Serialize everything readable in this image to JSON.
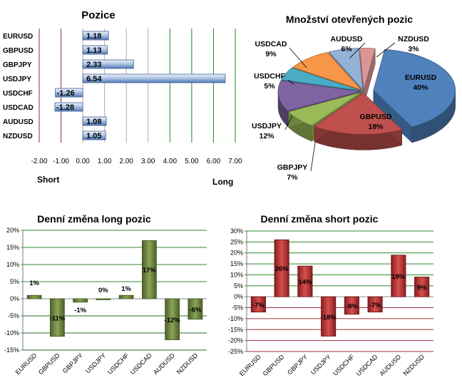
{
  "chart_data": [
    {
      "type": "bar",
      "orientation": "horizontal",
      "title": "Pozice",
      "categories": [
        "EURUSD",
        "GBPUSD",
        "GBPJPY",
        "USDJPY",
        "USDCHF",
        "USDCAD",
        "AUDUSD",
        "NZDUSD"
      ],
      "values": [
        1.18,
        1.13,
        2.33,
        6.54,
        -1.26,
        -1.28,
        1.08,
        1.05
      ],
      "labels": [
        "1.18",
        "1.13",
        "2.33",
        "6.54",
        "-1.26",
        "-1.28",
        "1.08",
        "1.05"
      ],
      "xlim": [
        -2,
        7
      ],
      "xticks": [
        "-2.00",
        "-1.00",
        "0.00",
        "1.00",
        "2.00",
        "3.00",
        "4.00",
        "5.00",
        "6.00",
        "7.00"
      ],
      "left_label": "Short",
      "right_label": "Long",
      "grid": true,
      "bar_color": "#4f79b5"
    },
    {
      "type": "pie",
      "title": "Množství otevřených pozic",
      "slices": [
        {
          "label": "EURUSD",
          "pct": "40%",
          "value": 40,
          "color": "#4f81bd"
        },
        {
          "label": "GBPUSD",
          "pct": "18%",
          "value": 18,
          "color": "#c0504d"
        },
        {
          "label": "GBPJPY",
          "pct": "7%",
          "value": 7,
          "color": "#9bbb59"
        },
        {
          "label": "USDJPY",
          "pct": "12%",
          "value": 12,
          "color": "#8064a2"
        },
        {
          "label": "USDCHF",
          "pct": "5%",
          "value": 5,
          "color": "#4bacc6"
        },
        {
          "label": "USDCAD",
          "pct": "9%",
          "value": 9,
          "color": "#f79646"
        },
        {
          "label": "AUDUSD",
          "pct": "6%",
          "value": 6,
          "color": "#95b3d7"
        },
        {
          "label": "NZDUSD",
          "pct": "3%",
          "value": 3,
          "color": "#d99694"
        }
      ]
    },
    {
      "type": "bar",
      "title": "Denní změna long pozic",
      "categories": [
        "EURUSD",
        "GBPUSD",
        "GBPJPY",
        "USDJPY",
        "USDCHF",
        "USDCAD",
        "AUDUSD",
        "NZDUSD"
      ],
      "values": [
        1,
        -11,
        -1,
        0,
        1,
        17,
        -12,
        -6
      ],
      "labels": [
        "1%",
        "-11%",
        "-1%",
        "0%",
        "1%",
        "17%",
        "-12%",
        "-6%"
      ],
      "ylim": [
        -15,
        20
      ],
      "yticks": [
        "-15%",
        "-10%",
        "-5%",
        "0%",
        "5%",
        "10%",
        "15%",
        "20%"
      ],
      "grid": true,
      "bar_color": "#77933c"
    },
    {
      "type": "bar",
      "title": "Denní změna short pozic",
      "categories": [
        "EURUSD",
        "GBPUSD",
        "GBPJPY",
        "USDJPY",
        "USDCHF",
        "USDCAD",
        "AUDUSD",
        "NZDUSD"
      ],
      "values": [
        -7,
        26,
        14,
        -18,
        -8,
        -7,
        19,
        9
      ],
      "labels": [
        "-7%",
        "26%",
        "14%",
        "-18%",
        "-8%",
        "-7%",
        "19%",
        "9%"
      ],
      "ylim": [
        -25,
        30
      ],
      "yticks": [
        "-25%",
        "-20%",
        "-15%",
        "-10%",
        "-5%",
        "0%",
        "5%",
        "10%",
        "15%",
        "20%",
        "25%",
        "30%"
      ],
      "grid": true,
      "bar_color": "#d03030"
    }
  ]
}
